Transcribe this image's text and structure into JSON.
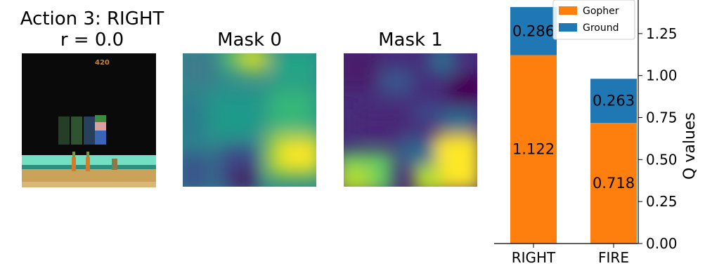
{
  "panels": {
    "frame": {
      "title_line1": "Action 3: RIGHT",
      "title_line2": "r = 0.0",
      "score": "420"
    },
    "mask0": {
      "title": "Mask 0"
    },
    "mask1": {
      "title": "Mask 1"
    }
  },
  "colors": {
    "gopher": "#ff7f0e",
    "ground": "#1f77b4"
  },
  "chart_data": {
    "type": "bar",
    "stacked": true,
    "categories": [
      "RIGHT",
      "FIRE"
    ],
    "series": [
      {
        "name": "Gopher",
        "values": [
          1.122,
          0.718
        ],
        "labels": [
          "1.122",
          "0.718"
        ]
      },
      {
        "name": "Ground",
        "values": [
          0.286,
          0.263
        ],
        "labels": [
          "0.286",
          "0.263"
        ]
      }
    ],
    "ylabel": "Q values",
    "ylim": [
      0,
      1.45
    ],
    "yticks": [
      "0.00",
      "0.25",
      "0.50",
      "0.75",
      "1.00",
      "1.25"
    ],
    "legend_position": "top-right",
    "y_axis_side": "right"
  }
}
